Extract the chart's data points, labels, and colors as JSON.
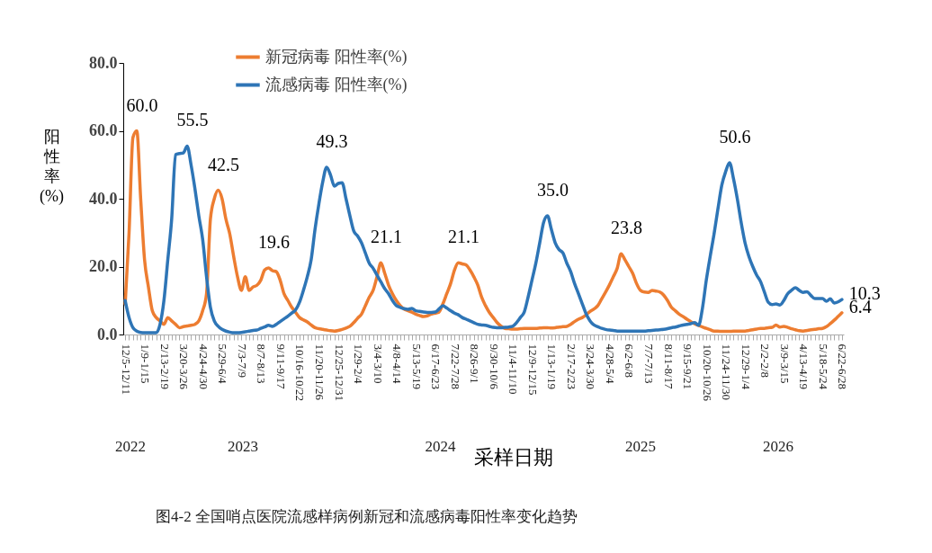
{
  "chart_data": {
    "type": "line",
    "categories": [
      "12/5-12/11",
      null,
      null,
      null,
      null,
      "1/9-1/15",
      null,
      null,
      null,
      null,
      "2/13-2/19",
      null,
      null,
      null,
      null,
      "3/20-3/26",
      null,
      null,
      null,
      null,
      "4/24-4/30",
      null,
      null,
      null,
      null,
      "5/29-6/4",
      null,
      null,
      null,
      null,
      "7/3-7/9",
      null,
      null,
      null,
      null,
      "8/7-8/13",
      null,
      null,
      null,
      null,
      "9/11-9/17",
      null,
      null,
      null,
      null,
      "10/16-10/22",
      null,
      null,
      null,
      null,
      "11/20-11/26",
      null,
      null,
      null,
      null,
      "12/25-12/31",
      null,
      null,
      null,
      null,
      "1/29-2/4",
      null,
      null,
      null,
      null,
      "3/4-3/10",
      null,
      null,
      null,
      null,
      "4/8-4/14",
      null,
      null,
      null,
      null,
      "5/13-5/19",
      null,
      null,
      null,
      null,
      "6/17-6/23",
      null,
      null,
      null,
      null,
      "7/22-7/28",
      null,
      null,
      null,
      null,
      "8/26-9/1",
      null,
      null,
      null,
      null,
      "9/30-10/6",
      null,
      null,
      null,
      null,
      "11/4-11/10",
      null,
      null,
      null,
      null,
      "12/9-12/15",
      null,
      null,
      null,
      null,
      "1/13-1/19",
      null,
      null,
      null,
      null,
      "2/17-2/23",
      null,
      null,
      null,
      null,
      "3/24-3/30",
      null,
      null,
      null,
      null,
      "4/28-5/4",
      null,
      null,
      null,
      null,
      "6/2-6/8",
      null,
      null,
      null,
      null,
      "7/7-7/13",
      null,
      null,
      null,
      null,
      "8/11-8/17",
      null,
      null,
      null,
      null,
      "9/15-9/21",
      null,
      null,
      null,
      null,
      "10/20-10/26",
      null,
      null,
      null,
      null,
      "11/24-11/30",
      null,
      null,
      null,
      null,
      "12/29-1/4",
      null,
      null,
      null,
      null,
      "2/2-2/8",
      null,
      null,
      null,
      null,
      "3/9-3/15",
      null,
      null,
      null,
      null,
      "4/13-4/19",
      null,
      null,
      null,
      null,
      "5/18-5/24",
      null,
      null,
      null,
      null,
      "6/22-6/28"
    ],
    "series": [
      {
        "name": "新冠病毒 阳性率(%)",
        "color": "#ed7d31",
        "values": [
          9,
          30,
          58,
          60,
          40,
          22,
          14,
          7,
          5,
          4,
          3,
          5,
          4,
          3,
          2,
          2.3,
          2.5,
          2.7,
          3,
          4,
          7,
          12,
          34,
          40,
          42.5,
          40,
          34,
          29.6,
          23,
          17,
          13,
          17,
          13,
          14,
          14.5,
          16,
          19,
          19.6,
          18.8,
          18.5,
          16,
          12,
          10,
          8,
          6.5,
          5,
          4.3,
          3.7,
          2.8,
          2,
          1.7,
          1.5,
          1.3,
          1.1,
          1,
          1.2,
          1.5,
          1.9,
          2.4,
          3.5,
          4.8,
          6,
          8.5,
          11,
          13,
          17,
          21.1,
          18,
          14.5,
          12,
          10,
          8.5,
          7.5,
          7,
          6.6,
          6,
          5.6,
          5.3,
          5.5,
          6,
          6.3,
          6.6,
          9,
          12,
          15,
          19,
          21.1,
          20.8,
          20.5,
          19,
          17,
          14.6,
          11,
          8.5,
          6.5,
          5,
          3.5,
          2.5,
          1.8,
          1.7,
          1.6,
          1.6,
          1.7,
          1.8,
          1.8,
          1.8,
          1.8,
          1.9,
          2,
          2,
          1.9,
          2,
          2.2,
          2.3,
          2.4,
          3,
          3.8,
          4.5,
          5,
          5.8,
          6.8,
          7.5,
          8.5,
          10.5,
          12.5,
          14.6,
          17,
          19.5,
          23.8,
          22,
          20,
          18,
          15,
          13,
          12.5,
          12.4,
          13,
          12.8,
          12.5,
          11.6,
          10,
          8,
          7,
          6,
          5.3,
          4.5,
          3.8,
          3.1,
          2.7,
          2.2,
          1.8,
          1.4,
          1,
          1,
          0.9,
          0.9,
          0.9,
          1,
          1,
          1,
          1,
          1.2,
          1.4,
          1.6,
          1.8,
          1.8,
          2,
          2.1,
          2.8,
          2.2,
          2.4,
          2.1,
          1.7,
          1.4,
          1.1,
          1,
          1.2,
          1.4,
          1.5,
          1.7,
          1.8,
          2.3,
          3.2,
          4.2,
          5.3,
          6.4
        ],
        "value_labels": [
          null,
          null,
          null,
          "60.0",
          null,
          null,
          null,
          null,
          null,
          null,
          null,
          null,
          null,
          null,
          null,
          null,
          null,
          null,
          null,
          null,
          null,
          null,
          null,
          null,
          "42.5",
          null,
          null,
          null,
          null,
          null,
          null,
          null,
          null,
          null,
          null,
          null,
          null,
          "19.6",
          null,
          null,
          null,
          null,
          null,
          null,
          null,
          null,
          null,
          null,
          null,
          null,
          null,
          null,
          null,
          null,
          null,
          null,
          null,
          null,
          null,
          null,
          null,
          null,
          null,
          null,
          null,
          null,
          "21.1",
          null,
          null,
          null,
          null,
          null,
          null,
          null,
          null,
          null,
          null,
          null,
          null,
          null,
          null,
          null,
          null,
          null,
          null,
          null,
          "21.1",
          null,
          null,
          null,
          null,
          null,
          null,
          null,
          null,
          null,
          null,
          null,
          null,
          null,
          null,
          null,
          null,
          null,
          null,
          null,
          null,
          null,
          null,
          null,
          null,
          null,
          null,
          null,
          null,
          null,
          null,
          null,
          null,
          null,
          null,
          null,
          null,
          null,
          null,
          null,
          null,
          null,
          "23.8",
          null,
          null,
          null,
          null,
          null,
          null,
          null,
          null,
          null,
          null,
          null,
          null,
          null,
          null,
          null,
          null,
          null,
          null,
          null,
          null,
          null,
          null,
          null,
          null,
          null,
          null,
          null,
          null,
          null,
          null,
          null,
          null,
          null,
          null,
          null,
          null,
          null,
          null,
          null,
          null,
          null,
          null,
          null,
          null,
          null,
          null,
          null,
          null,
          null,
          null,
          null,
          null,
          null,
          null,
          null,
          null,
          "6.4"
        ]
      },
      {
        "name": "流感病毒 阳性率(%)",
        "color": "#2e75b6",
        "values": [
          10,
          5,
          2,
          1,
          0.6,
          0.5,
          0.5,
          0.5,
          0.5,
          3,
          10,
          22,
          34,
          53,
          53.3,
          53.5,
          55.5,
          50,
          43,
          35,
          28,
          17,
          8,
          4,
          2.4,
          1.5,
          1,
          0.7,
          0.5,
          0.5,
          0.6,
          0.8,
          1,
          1.2,
          1.3,
          1.8,
          2.2,
          2.7,
          2.4,
          3,
          3.8,
          4.6,
          5.4,
          6.3,
          7.3,
          9.5,
          13,
          17,
          22,
          31,
          38.5,
          45,
          49.3,
          47,
          43.7,
          44.5,
          44.7,
          40,
          35,
          30.5,
          29,
          27,
          24,
          21,
          19.5,
          17.5,
          15.5,
          13.5,
          12,
          10,
          8.5,
          8,
          7.6,
          7.4,
          7.7,
          7,
          6.8,
          6.6,
          6.5,
          6.5,
          6.6,
          7.5,
          8.5,
          7.8,
          7,
          6.3,
          5.8,
          5,
          4.5,
          4,
          3.5,
          3,
          2.8,
          2.7,
          2.4,
          2.1,
          2,
          2,
          2.1,
          2.2,
          2.4,
          3.5,
          5,
          6.6,
          11,
          16,
          21,
          27,
          33,
          35,
          31,
          27,
          25,
          24,
          21,
          18.5,
          15,
          12,
          9,
          6,
          4,
          2.8,
          2.3,
          1.8,
          1.5,
          1.3,
          1.2,
          1,
          1,
          1,
          1,
          1,
          1,
          1,
          1,
          1.1,
          1.2,
          1.3,
          1.4,
          1.5,
          1.7,
          2,
          2.2,
          2.5,
          2.8,
          3,
          3.2,
          3.5,
          2.7,
          7.7,
          16,
          23,
          29.6,
          37,
          44,
          48,
          50.6,
          46,
          40,
          33,
          27,
          23,
          20,
          17.5,
          15.6,
          12.5,
          9.5,
          8.8,
          9,
          8.7,
          10,
          12,
          13,
          13.8,
          13,
          12.4,
          12.6,
          11.5,
          10.6,
          10.6,
          10.6,
          9.8,
          10.5,
          9.3,
          9.6,
          10.3
        ],
        "value_labels": [
          null,
          null,
          null,
          null,
          null,
          null,
          null,
          null,
          null,
          null,
          null,
          null,
          null,
          null,
          null,
          null,
          "55.5",
          null,
          null,
          null,
          null,
          null,
          null,
          null,
          null,
          null,
          null,
          null,
          null,
          null,
          null,
          null,
          null,
          null,
          null,
          null,
          null,
          null,
          null,
          null,
          null,
          null,
          null,
          null,
          null,
          null,
          null,
          null,
          null,
          null,
          null,
          null,
          "49.3",
          null,
          null,
          null,
          null,
          null,
          null,
          null,
          null,
          null,
          null,
          null,
          null,
          null,
          null,
          null,
          null,
          null,
          null,
          null,
          null,
          null,
          null,
          null,
          null,
          null,
          null,
          null,
          null,
          null,
          null,
          null,
          null,
          null,
          null,
          null,
          null,
          null,
          null,
          null,
          null,
          null,
          null,
          null,
          null,
          null,
          null,
          null,
          null,
          null,
          null,
          null,
          null,
          null,
          null,
          null,
          null,
          "35.0",
          null,
          null,
          null,
          null,
          null,
          null,
          null,
          null,
          null,
          null,
          null,
          null,
          null,
          null,
          null,
          null,
          null,
          null,
          null,
          null,
          null,
          null,
          null,
          null,
          null,
          null,
          null,
          null,
          null,
          null,
          null,
          null,
          null,
          null,
          null,
          null,
          null,
          null,
          null,
          null,
          null,
          null,
          null,
          null,
          null,
          null,
          "50.6",
          null,
          null,
          null,
          null,
          null,
          null,
          null,
          null,
          null,
          null,
          null,
          null,
          null,
          null,
          null,
          null,
          null,
          null,
          null,
          null,
          null,
          null,
          null,
          null,
          null,
          null,
          null,
          null,
          "10.3"
        ]
      }
    ],
    "xlabel": "采样日期",
    "ylabel": "阳性率(%)",
    "ylim": [
      0,
      80
    ],
    "yticks": [
      {
        "value": 0,
        "label": "0.0"
      },
      {
        "value": 20,
        "label": "20.0"
      },
      {
        "value": 40,
        "label": "40.0"
      },
      {
        "value": 60,
        "label": "60.0"
      },
      {
        "value": 80,
        "label": "80.0"
      }
    ],
    "grid": false,
    "legend": "top",
    "marker": "none",
    "line_style": "solid",
    "annotations": [
      "2022",
      "2023",
      "2024",
      "2025",
      "2026",
      "图4-2 全国哨点医院流感样病例新冠和流感病毒阳性率变化趋势"
    ]
  }
}
